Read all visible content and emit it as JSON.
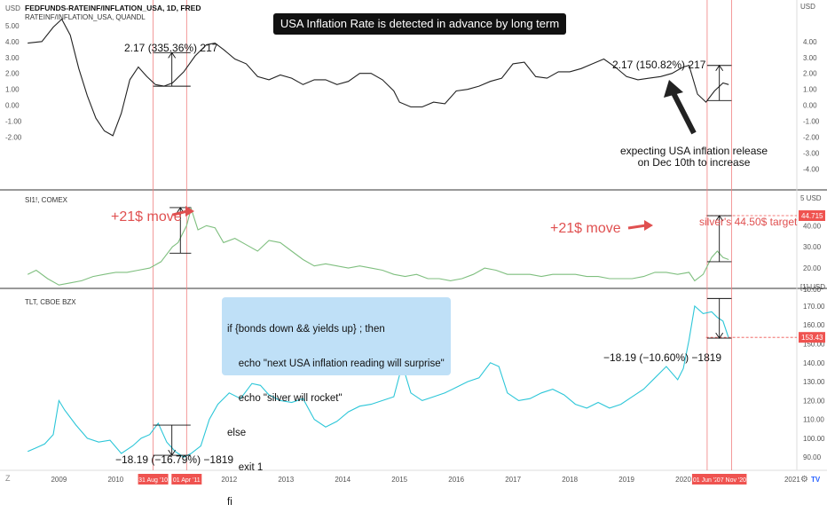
{
  "chart_data": [
    {
      "type": "line",
      "header": "FEDFUNDS-RATEINF/INFLATION_USA, 1D, FRED",
      "subheader": "RATEINF/INFLATION_USA, QUANDL",
      "color": "#222222",
      "ylim": [
        -4.8,
        5.6
      ],
      "left_ticks": [
        "5.00",
        "4.00",
        "3.00",
        "2.00",
        "1.00",
        "0.00",
        "-1.00",
        "-2.00"
      ],
      "left_tick_values": [
        5,
        4,
        3,
        2,
        1,
        0,
        -1,
        -2
      ],
      "right_ticks": [
        "4.00",
        "3.00",
        "2.00",
        "1.00",
        "0.00",
        "-1.00",
        "-2.00",
        "-3.00",
        "-4.00"
      ],
      "right_tick_values": [
        4,
        3,
        2,
        1,
        0,
        -1,
        -2,
        -3,
        -4
      ],
      "right_unit": "USD",
      "x": [
        2008.45,
        2008.7,
        2008.9,
        2009.05,
        2009.2,
        2009.35,
        2009.5,
        2009.65,
        2009.8,
        2009.95,
        2010.1,
        2010.25,
        2010.4,
        2010.55,
        2010.7,
        2010.85,
        2011.0,
        2011.2,
        2011.4,
        2011.6,
        2011.75,
        2011.9,
        2012.1,
        2012.3,
        2012.5,
        2012.7,
        2012.9,
        2013.1,
        2013.3,
        2013.5,
        2013.7,
        2013.9,
        2014.1,
        2014.3,
        2014.5,
        2014.7,
        2014.9,
        2015.0,
        2015.2,
        2015.4,
        2015.6,
        2015.8,
        2016.0,
        2016.2,
        2016.4,
        2016.6,
        2016.8,
        2017.0,
        2017.2,
        2017.4,
        2017.6,
        2017.8,
        2018.0,
        2018.2,
        2018.4,
        2018.6,
        2018.8,
        2019.0,
        2019.2,
        2019.4,
        2019.6,
        2019.8,
        2020.0,
        2020.1,
        2020.25,
        2020.4,
        2020.55,
        2020.7,
        2020.8
      ],
      "values": [
        3.9,
        4.0,
        4.9,
        5.4,
        4.4,
        2.3,
        0.6,
        -0.8,
        -1.6,
        -1.9,
        -0.5,
        1.6,
        2.4,
        1.8,
        1.3,
        1.2,
        1.4,
        2.1,
        3.1,
        3.8,
        3.9,
        3.5,
        2.9,
        2.6,
        1.8,
        1.6,
        1.9,
        1.7,
        1.3,
        1.6,
        1.6,
        1.3,
        1.5,
        2.0,
        2.0,
        1.6,
        0.9,
        0.2,
        -0.1,
        -0.1,
        0.2,
        0.1,
        0.9,
        1.0,
        1.2,
        1.5,
        1.7,
        2.6,
        2.7,
        1.8,
        1.7,
        2.1,
        2.1,
        2.3,
        2.6,
        2.9,
        2.4,
        1.8,
        1.6,
        1.7,
        1.8,
        2.0,
        2.4,
        2.5,
        0.7,
        0.2,
        0.9,
        1.4,
        1.3
      ]
    },
    {
      "type": "line",
      "header": "SI1!, COMEX",
      "color": "#7fbf7f",
      "ylim": [
        12.5,
        53.5
      ],
      "right_ticks": [
        "40.00",
        "30.00",
        "20.00",
        "10.00"
      ],
      "right_tick_values": [
        40,
        30,
        20,
        10
      ],
      "top_right_label": "5 USD",
      "x": [
        2008.45,
        2008.6,
        2008.8,
        2009.0,
        2009.2,
        2009.4,
        2009.6,
        2009.8,
        2010.0,
        2010.2,
        2010.4,
        2010.6,
        2010.8,
        2011.0,
        2011.1,
        2011.25,
        2011.33,
        2011.45,
        2011.6,
        2011.75,
        2011.9,
        2012.1,
        2012.3,
        2012.5,
        2012.7,
        2012.9,
        2013.1,
        2013.3,
        2013.5,
        2013.7,
        2013.9,
        2014.1,
        2014.3,
        2014.5,
        2014.7,
        2014.9,
        2015.1,
        2015.3,
        2015.5,
        2015.7,
        2015.9,
        2016.1,
        2016.3,
        2016.5,
        2016.7,
        2016.9,
        2017.1,
        2017.3,
        2017.5,
        2017.7,
        2017.9,
        2018.1,
        2018.3,
        2018.5,
        2018.7,
        2018.9,
        2019.1,
        2019.3,
        2019.5,
        2019.7,
        2019.9,
        2020.1,
        2020.2,
        2020.35,
        2020.5,
        2020.6,
        2020.7,
        2020.8
      ],
      "values": [
        17,
        19,
        15,
        12,
        13,
        14,
        16,
        17,
        18,
        18,
        19,
        20,
        23,
        30,
        32,
        40,
        48,
        38,
        40,
        39,
        32,
        34,
        31,
        28,
        33,
        32,
        28,
        24,
        21,
        22,
        21,
        20,
        21,
        20,
        19,
        17,
        16,
        17,
        15,
        15,
        14,
        15,
        17,
        20,
        19,
        17,
        17,
        17,
        16,
        17,
        17,
        17,
        16,
        16,
        15,
        15,
        15,
        16,
        18,
        18,
        17,
        18,
        14,
        17,
        25,
        28,
        25,
        24
      ]
    },
    {
      "type": "line",
      "header": "TLT, CBOE BZX",
      "color": "#2cc6d8",
      "ylim": [
        84,
        177
      ],
      "right_ticks": [
        "170.00",
        "160.00",
        "150.00",
        "140.00",
        "130.00",
        "120.00",
        "110.00",
        "100.00",
        "90.00"
      ],
      "right_tick_values": [
        170,
        160,
        150,
        140,
        130,
        120,
        110,
        100,
        90
      ],
      "top_right_label": "[1] USD",
      "x": [
        2008.45,
        2008.6,
        2008.75,
        2008.9,
        2009.0,
        2009.1,
        2009.3,
        2009.5,
        2009.7,
        2009.9,
        2010.1,
        2010.3,
        2010.45,
        2010.6,
        2010.75,
        2010.9,
        2011.05,
        2011.2,
        2011.33,
        2011.5,
        2011.65,
        2011.8,
        2012.0,
        2012.2,
        2012.4,
        2012.55,
        2012.7,
        2012.9,
        2013.1,
        2013.3,
        2013.5,
        2013.7,
        2013.9,
        2014.1,
        2014.3,
        2014.5,
        2014.7,
        2014.9,
        2015.05,
        2015.2,
        2015.4,
        2015.6,
        2015.8,
        2016.0,
        2016.2,
        2016.4,
        2016.6,
        2016.75,
        2016.9,
        2017.1,
        2017.3,
        2017.5,
        2017.7,
        2017.9,
        2018.1,
        2018.3,
        2018.5,
        2018.7,
        2018.9,
        2019.1,
        2019.3,
        2019.5,
        2019.7,
        2019.9,
        2020.0,
        2020.1,
        2020.2,
        2020.35,
        2020.5,
        2020.6,
        2020.7,
        2020.8
      ],
      "values": [
        93,
        95,
        97,
        102,
        120,
        115,
        107,
        100,
        98,
        99,
        92,
        96,
        100,
        102,
        108,
        98,
        93,
        90,
        92,
        96,
        110,
        118,
        124,
        121,
        129,
        128,
        123,
        120,
        119,
        121,
        110,
        106,
        109,
        114,
        117,
        118,
        120,
        122,
        139,
        124,
        120,
        122,
        124,
        127,
        130,
        132,
        140,
        138,
        124,
        120,
        121,
        124,
        126,
        123,
        118,
        116,
        119,
        116,
        118,
        122,
        126,
        132,
        138,
        131,
        137,
        152,
        170,
        166,
        167,
        164,
        162,
        153
      ]
    }
  ],
  "x_axis": {
    "ticks": [
      "2009",
      "2010",
      "2012",
      "2013",
      "2014",
      "2015",
      "2016",
      "2017",
      "2018",
      "2019",
      "2020",
      "Dec",
      "2021"
    ],
    "tick_values": [
      2009,
      2010,
      2012,
      2013,
      2014,
      2015,
      2016,
      2017,
      2018,
      2019,
      2020,
      2020.92,
      2021.92
    ],
    "highlight_labels": [
      "31 Aug '10",
      "01 Apr '11",
      "01 Jun '20",
      "07 Nov '20"
    ],
    "highlight_values": [
      2010.66,
      2011.25,
      2020.42,
      2020.85
    ],
    "xlim": [
      2008.4,
      2022.0
    ]
  },
  "annotations": {
    "title": "USA Inflation Rate is detected in advance by long term bonds",
    "p1_left_measure": "2.17 (335.36%) 217",
    "p1_right_measure": "2.17 (150.82%) 217",
    "p1_note_line1": "expecting USA inflation release",
    "p1_note_line2": "on Dec 10th to increase",
    "p2_move_left": "+21$ move",
    "p2_move_right": "+21$ move",
    "p2_target": "silver's 44.50$ target",
    "p2_price_badge": "44.715",
    "p3_left_measure": "−18.19 (−16.79%) −1819",
    "p3_right_measure": "−18.19 (−10.60%) −1819",
    "p3_price_badge": "153.43",
    "code": [
      "if {bonds down && yields up} ; then",
      "    echo \"next USA inflation reading will surprise\"",
      "    echo \"silver will rocket\"",
      "else",
      "    exit 1",
      "fi"
    ]
  },
  "ui": {
    "left_unit": "USD",
    "corner_z": "Z",
    "corner_gear": "⚙",
    "corner_logo": "TV"
  },
  "colors": {
    "highlight": "#f08080",
    "badge": "#ef5350",
    "arrow": "#e05050",
    "axis_text": "#555555"
  }
}
